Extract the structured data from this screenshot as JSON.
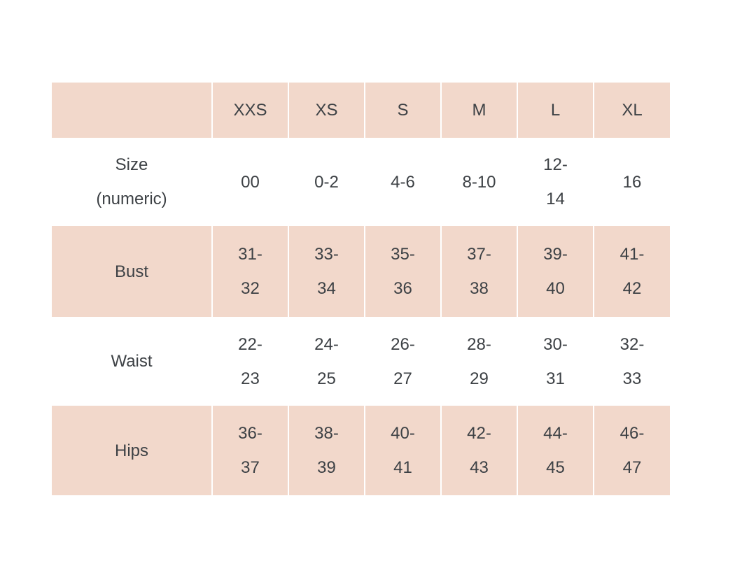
{
  "colors": {
    "page_background": "#ffffff",
    "row_highlight": "#f2d8cb",
    "column_divider": "#f6e3d9",
    "text": "#3d4145"
  },
  "table": {
    "corner": "",
    "columns": [
      "XXS",
      "XS",
      "S",
      "M",
      "L",
      "XL"
    ],
    "rows": [
      {
        "label": "Size\n(numeric)",
        "values": [
          "00",
          "0-2",
          "4-6",
          "8-10",
          "12-\n14",
          "16"
        ]
      },
      {
        "label": "Bust",
        "values": [
          "31-\n32",
          "33-\n34",
          "35-\n36",
          "37-\n38",
          "39-\n40",
          "41-\n42"
        ]
      },
      {
        "label": "Waist",
        "values": [
          "22-\n23",
          "24-\n25",
          "26-\n27",
          "28-\n29",
          "30-\n31",
          "32-\n33"
        ]
      },
      {
        "label": "Hips",
        "values": [
          "36-\n37",
          "38-\n39",
          "40-\n41",
          "42-\n43",
          "44-\n45",
          "46-\n47"
        ]
      }
    ]
  }
}
